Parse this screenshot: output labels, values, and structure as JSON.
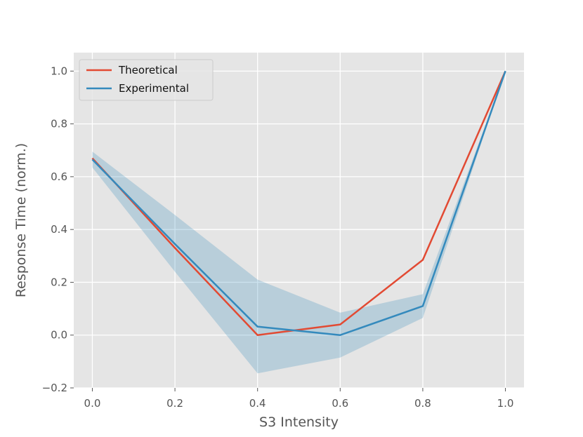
{
  "chart_data": {
    "type": "line",
    "title": "",
    "xlabel": "S3 Intensity",
    "ylabel": "Response Time (norm.)",
    "xlim": [
      -0.045,
      1.045
    ],
    "ylim": [
      -0.2,
      1.07
    ],
    "x": [
      0.0,
      0.2,
      0.4,
      0.6,
      0.8,
      1.0
    ],
    "xticks": [
      0.0,
      0.2,
      0.4,
      0.6,
      0.8,
      1.0
    ],
    "xtick_labels": [
      "0.0",
      "0.2",
      "0.4",
      "0.6",
      "0.8",
      "1.0"
    ],
    "yticks": [
      -0.2,
      0.0,
      0.2,
      0.4,
      0.6,
      0.8,
      1.0
    ],
    "ytick_labels": [
      "−0.2",
      "0.0",
      "0.2",
      "0.4",
      "0.6",
      "0.8",
      "1.0"
    ],
    "grid": true,
    "legend_position": "top-left",
    "series": [
      {
        "name": "Theoretical",
        "color": "#E24A33",
        "values": [
          0.67,
          0.33,
          0.0,
          0.04,
          0.285,
          1.0
        ]
      },
      {
        "name": "Experimental",
        "color": "#348ABD",
        "values": [
          0.665,
          0.345,
          0.032,
          0.0,
          0.11,
          1.0
        ],
        "band_lower": [
          0.635,
          0.24,
          -0.145,
          -0.085,
          0.065,
          1.0
        ],
        "band_upper": [
          0.695,
          0.455,
          0.21,
          0.085,
          0.155,
          1.0
        ],
        "band_color": "#348ABD"
      }
    ]
  }
}
